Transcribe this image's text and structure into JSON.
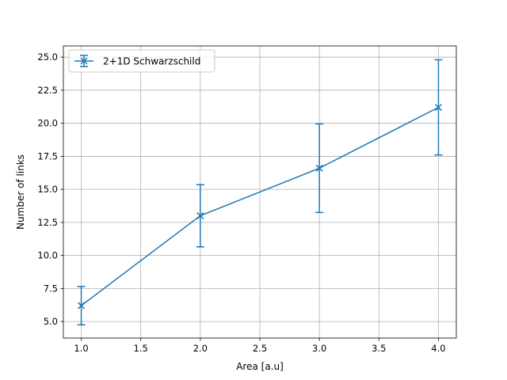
{
  "chart_data": {
    "type": "line",
    "title": "",
    "xlabel": "Area [a.u]",
    "ylabel": "Number of links",
    "xlim": [
      0.85,
      4.15
    ],
    "ylim": [
      3.75,
      25.85
    ],
    "xticks": [
      1.0,
      1.5,
      2.0,
      2.5,
      3.0,
      3.5,
      4.0
    ],
    "xtick_labels": [
      "1.0",
      "1.5",
      "2.0",
      "2.5",
      "3.0",
      "3.5",
      "4.0"
    ],
    "yticks": [
      5.0,
      7.5,
      10.0,
      12.5,
      15.0,
      17.5,
      20.0,
      22.5,
      25.0
    ],
    "ytick_labels": [
      "5.0",
      "7.5",
      "10.0",
      "12.5",
      "15.0",
      "17.5",
      "20.0",
      "22.5",
      "25.0"
    ],
    "grid": true,
    "legend_position": "top-left",
    "series": [
      {
        "name": "2+1D Schwarzschild",
        "color": "#1f77b4",
        "marker": "x",
        "x": [
          1,
          2,
          3,
          4
        ],
        "y": [
          6.2,
          13.0,
          16.6,
          21.2
        ],
        "yerr": [
          1.45,
          2.35,
          3.35,
          3.6
        ]
      }
    ]
  }
}
